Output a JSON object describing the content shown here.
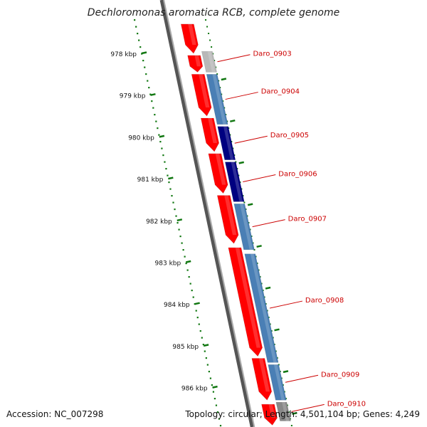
{
  "title": "Dechloromonas aromatica RCB, complete genome",
  "footer": {
    "accession": "Accession: NC_007298",
    "topology": "Topology: circular; Length: 4,501,104 bp; Genes: 4,249"
  },
  "colors": {
    "label_text": "#cc0000",
    "tick": "#117711",
    "reverse_gene": "#ff0000",
    "forward_gene_a": "#4a7fb5",
    "forward_gene_b": "#000080",
    "forward_gene_c": "#b0b0b0",
    "backbone": "#808080"
  },
  "scale": {
    "unit": "kbp",
    "ticks": [
      {
        "kbp": 978,
        "label": "978 kbp"
      },
      {
        "kbp": 979,
        "label": "979 kbp"
      },
      {
        "kbp": 980,
        "label": "980 kbp"
      },
      {
        "kbp": 981,
        "label": "981 kbp"
      },
      {
        "kbp": 982,
        "label": "982 kbp"
      },
      {
        "kbp": 983,
        "label": "983 kbp"
      },
      {
        "kbp": 984,
        "label": "984 kbp"
      },
      {
        "kbp": 985,
        "label": "985 kbp"
      },
      {
        "kbp": 986,
        "label": "986 kbp"
      }
    ]
  },
  "genes": [
    {
      "id": "Daro_0903",
      "start_kbp": 977.95,
      "end_kbp": 978.45,
      "color": "#b8b8b8"
    },
    {
      "id": "Daro_0904",
      "start_kbp": 978.5,
      "end_kbp": 979.7,
      "color": "#4a7fb5"
    },
    {
      "id": "Daro_0905",
      "start_kbp": 979.75,
      "end_kbp": 980.55,
      "color": "#000080"
    },
    {
      "id": "Daro_0906",
      "start_kbp": 980.6,
      "end_kbp": 981.55,
      "color": "#000080"
    },
    {
      "id": "Daro_0907",
      "start_kbp": 981.6,
      "end_kbp": 982.7,
      "color": "#4a7fb5"
    },
    {
      "id": "Daro_0908",
      "start_kbp": 982.8,
      "end_kbp": 985.4,
      "color": "#4a7fb5"
    },
    {
      "id": "Daro_0909",
      "start_kbp": 985.45,
      "end_kbp": 986.3,
      "color": "#4a7fb5"
    },
    {
      "id": "Daro_0910",
      "start_kbp": 986.35,
      "end_kbp": 986.8,
      "color": "#888888"
    }
  ],
  "reverse_genes": [
    {
      "start_kbp": 977.3,
      "end_kbp": 978.0
    },
    {
      "start_kbp": 978.05,
      "end_kbp": 978.45
    },
    {
      "start_kbp": 978.5,
      "end_kbp": 979.5
    },
    {
      "start_kbp": 979.55,
      "end_kbp": 980.35
    },
    {
      "start_kbp": 980.4,
      "end_kbp": 981.35
    },
    {
      "start_kbp": 981.4,
      "end_kbp": 982.55
    },
    {
      "start_kbp": 982.65,
      "end_kbp": 985.25
    },
    {
      "start_kbp": 985.3,
      "end_kbp": 986.3
    },
    {
      "start_kbp": 986.4,
      "end_kbp": 986.9
    }
  ]
}
